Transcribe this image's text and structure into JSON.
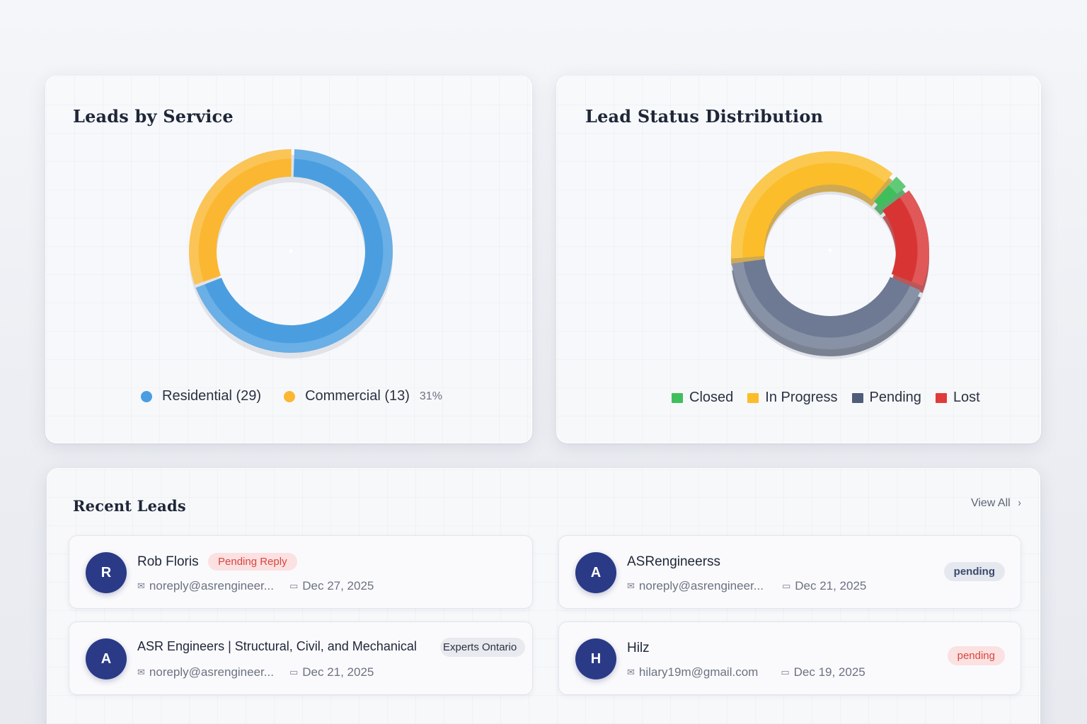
{
  "service_card": {
    "title": "Leads by Service",
    "legend": [
      {
        "label": "Residential (29)",
        "color": "#4a9ee0"
      },
      {
        "label": "Commercial (13)",
        "color": "#fbb731"
      }
    ],
    "percent_label": "31%"
  },
  "status_card": {
    "title": "Lead Status Distribution",
    "legend": [
      {
        "label": "Closed",
        "color": "#3fbf5c"
      },
      {
        "label": "In Progress",
        "color": "#fbbd2a"
      },
      {
        "label": "Pending",
        "color": "#4f5d7a"
      },
      {
        "label": "Lost",
        "color": "#e03b3b"
      }
    ]
  },
  "chart_data": [
    {
      "type": "pie",
      "title": "Leads by Service",
      "categories": [
        "Residential",
        "Commercial"
      ],
      "values": [
        29,
        13
      ],
      "colors": [
        "#4a9ee0",
        "#fbb731"
      ]
    },
    {
      "type": "pie",
      "title": "Lead Status Distribution",
      "categories": [
        "In Progress",
        "Closed",
        "Lost",
        "Pending"
      ],
      "values": [
        38,
        3,
        17,
        42
      ],
      "colors": [
        "#fbbd2a",
        "#3fbf5c",
        "#d93434",
        "#6e7a94"
      ]
    }
  ],
  "recent": {
    "title": "Recent Leads",
    "view_all": "View All",
    "chevron": "›",
    "mail_icon": "✉",
    "calendar_icon": "▭",
    "leads": [
      {
        "initial": "R",
        "name": "Rob Floris",
        "email": "noreply@asrengineer...",
        "date": "Dec 27, 2025",
        "badge": "Pending Reply"
      },
      {
        "initial": "A",
        "name": "ASRengineerss",
        "email": "noreply@asrengineer...",
        "date": "Dec 21, 2025",
        "badge": "pending"
      },
      {
        "initial": "A",
        "name": "ASR Engineers | Structural, Civil, and Mechanical",
        "tag": "Experts Ontario",
        "email": "noreply@asrengineer...",
        "date": "Dec 21, 2025"
      },
      {
        "initial": "H",
        "name": "Hilz",
        "email": "hilary19m@gmail.com",
        "date": "Dec 19, 2025",
        "badge": "pending"
      }
    ]
  }
}
